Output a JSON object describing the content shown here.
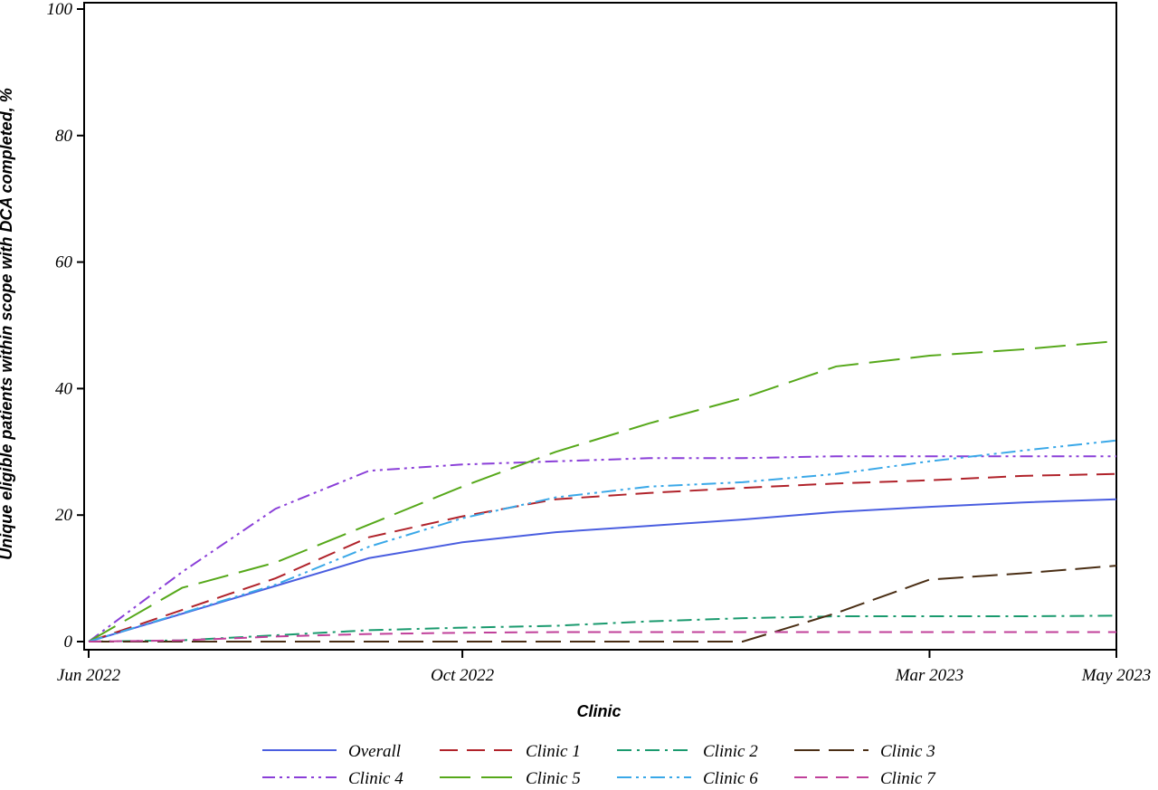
{
  "chart_data": {
    "type": "line",
    "x_label": "Clinic",
    "y_label": "Unique eligible patients within scope with DCA completed, %",
    "categories": [
      "Jun 2022",
      null,
      null,
      null,
      "Oct 2022",
      null,
      null,
      null,
      null,
      "Mar 2023",
      null,
      "May 2023"
    ],
    "ylim": [
      0,
      100
    ],
    "yticks": [
      0,
      20,
      40,
      60,
      80,
      100
    ],
    "series": [
      {
        "name": "Overall",
        "color": "#4a5ee0",
        "dash": "none",
        "values": [
          0,
          4.4,
          8.8,
          13.2,
          15.7,
          17.3,
          18.3,
          19.3,
          20.5,
          21.3,
          22,
          22.5
        ]
      },
      {
        "name": "Clinic 1",
        "color": "#b0222a",
        "dash": "20 10",
        "values": [
          0,
          5,
          10,
          16.5,
          19.8,
          22.5,
          23.5,
          24.3,
          25,
          25.5,
          26.2,
          26.5
        ]
      },
      {
        "name": "Clinic 2",
        "color": "#1a9a6e",
        "dash": "16 6 3 6",
        "values": [
          0,
          0.2,
          1,
          1.8,
          2.2,
          2.5,
          3.2,
          3.7,
          4,
          4,
          4,
          4.1
        ]
      },
      {
        "name": "Clinic 3",
        "color": "#4a2e14",
        "dash": "28 10",
        "values": [
          0,
          0,
          0,
          0,
          0,
          0,
          0,
          0,
          4.5,
          9.8,
          10.8,
          12
        ]
      },
      {
        "name": "Clinic 4",
        "color": "#8a3fd8",
        "dash": "14 5 3 5 3 5",
        "values": [
          0,
          11,
          21,
          27,
          28,
          28.5,
          29,
          29,
          29.3,
          29.3,
          29.3,
          29.3
        ]
      },
      {
        "name": "Clinic 5",
        "color": "#56a81a",
        "dash": "34 12",
        "values": [
          0,
          8.5,
          12.5,
          18.5,
          24.5,
          30,
          34.5,
          38.5,
          43.5,
          45.2,
          46.2,
          47.5
        ]
      },
      {
        "name": "Clinic 6",
        "color": "#3aa8e8",
        "dash": "16 5 3 5 3 5",
        "values": [
          0,
          4.5,
          9,
          15,
          19.5,
          22.8,
          24.5,
          25.2,
          26.5,
          28.5,
          30.2,
          31.8
        ]
      },
      {
        "name": "Clinic 7",
        "color": "#c0409a",
        "dash": "14 9",
        "values": [
          0,
          0.2,
          0.8,
          1.2,
          1.4,
          1.5,
          1.5,
          1.5,
          1.5,
          1.5,
          1.5,
          1.5
        ]
      }
    ]
  }
}
